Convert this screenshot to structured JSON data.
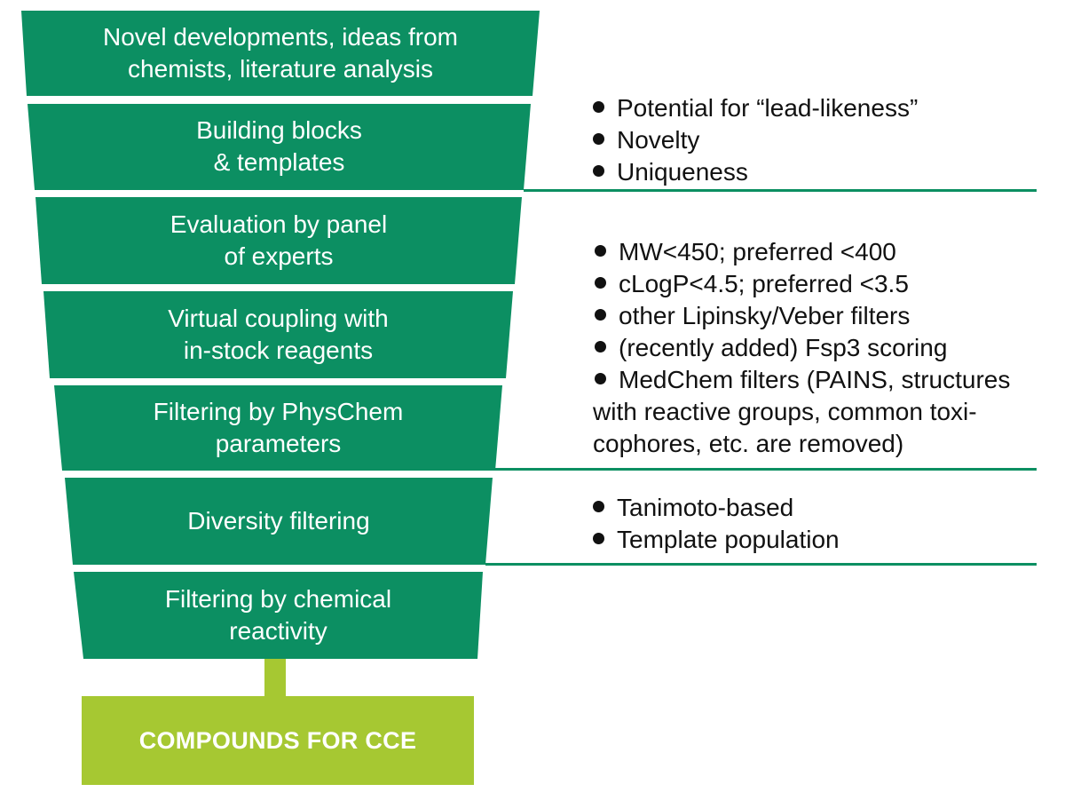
{
  "colors": {
    "stage_fill": "#0c8f62",
    "divider": "#0c8f62",
    "connector": "#a6c832",
    "result_fill": "#a6c832",
    "text_light": "#ffffff",
    "text_dark": "#111111"
  },
  "stages": [
    {
      "line1": "Novel developments, ideas from",
      "line2": "chemists, literature analysis"
    },
    {
      "line1": "Building blocks",
      "line2": "& templates"
    },
    {
      "line1": "Evaluation by panel",
      "line2": "of experts"
    },
    {
      "line1": "Virtual coupling with",
      "line2": "in-stock reagents"
    },
    {
      "line1": "Filtering by PhysChem",
      "line2": "parameters"
    },
    {
      "line1": "Diversity filtering",
      "line2": ""
    },
    {
      "line1": "Filtering by chemical",
      "line2": "reactivity"
    }
  ],
  "result": {
    "label": "COMPOUNDS FOR CCE"
  },
  "notes": {
    "group1": [
      "Potential for “lead-likeness”",
      "Novelty",
      "Uniqueness"
    ],
    "group2": [
      "MW<450; preferred <400",
      "cLogP<4.5; preferred <3.5",
      "other Lipinsky/Veber filters",
      "(recently added) Fsp3 scoring",
      "MedChem filters (PAINS, structures"
    ],
    "group2_continuation": [
      "with reactive groups, common toxi-",
      "cophores, etc. are removed)"
    ],
    "group3": [
      "Tanimoto-based",
      "Template population"
    ]
  }
}
